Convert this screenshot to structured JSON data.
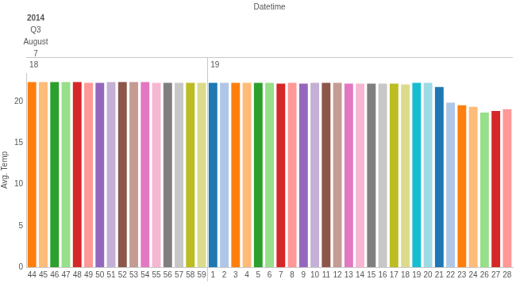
{
  "chart_data": {
    "type": "bar",
    "xlabel": "Datetime",
    "ylabel": "Avg. Temp",
    "x_headers": [
      "2014",
      "Q3",
      "August",
      "7"
    ],
    "categories": [
      "44",
      "45",
      "46",
      "47",
      "48",
      "49",
      "50",
      "51",
      "52",
      "53",
      "54",
      "55",
      "56",
      "57",
      "58",
      "59",
      "1",
      "2",
      "3",
      "4",
      "5",
      "6",
      "7",
      "8",
      "9",
      "10",
      "11",
      "12",
      "13",
      "14",
      "15",
      "16",
      "17",
      "18",
      "19",
      "20",
      "21",
      "22",
      "23",
      "24",
      "26",
      "27",
      "28"
    ],
    "x_groups": [
      "18",
      "18",
      "18",
      "18",
      "18",
      "18",
      "18",
      "18",
      "18",
      "18",
      "18",
      "18",
      "18",
      "18",
      "18",
      "18",
      "19",
      "19",
      "19",
      "19",
      "19",
      "19",
      "19",
      "19",
      "19",
      "19",
      "19",
      "19",
      "19",
      "19",
      "19",
      "19",
      "19",
      "19",
      "19",
      "19",
      "19",
      "19",
      "19",
      "19",
      "19",
      "19",
      "19"
    ],
    "values": [
      22.4,
      22.4,
      22.4,
      22.4,
      22.4,
      22.3,
      22.3,
      22.4,
      22.4,
      22.4,
      22.4,
      22.3,
      22.3,
      22.3,
      22.3,
      22.3,
      22.3,
      22.3,
      22.3,
      22.3,
      22.3,
      22.3,
      22.2,
      22.3,
      22.2,
      22.3,
      22.3,
      22.3,
      22.2,
      22.2,
      22.2,
      22.2,
      22.2,
      22.1,
      22.3,
      22.3,
      21.8,
      19.9,
      19.6,
      19.4,
      18.7,
      18.9,
      19.1
    ],
    "colors": [
      "#ff7f0e",
      "#ffbb78",
      "#2ca02c",
      "#98df8a",
      "#d62728",
      "#ff9896",
      "#9467bd",
      "#c5b0d5",
      "#8c564b",
      "#c49c94",
      "#e377c2",
      "#f7b6d2",
      "#7f7f7f",
      "#c7c7c7",
      "#bcbd22",
      "#dbdb8d",
      "#1f77b4",
      "#aec7e8",
      "#ff7f0e",
      "#ffbb78",
      "#2ca02c",
      "#98df8a",
      "#d62728",
      "#ff9896",
      "#9467bd",
      "#c5b0d5",
      "#8c564b",
      "#c49c94",
      "#e377c2",
      "#f7b6d2",
      "#7f7f7f",
      "#c7c7c7",
      "#bcbd22",
      "#dbdb8d",
      "#17becf",
      "#9edae5",
      "#1f77b4",
      "#aec7e8",
      "#ff7f0e",
      "#ffbb78",
      "#98df8a",
      "#d62728",
      "#ff9896"
    ],
    "ylim": [
      0,
      23.5
    ],
    "yticks": [
      0,
      5,
      10,
      15,
      20
    ],
    "grid": false
  }
}
